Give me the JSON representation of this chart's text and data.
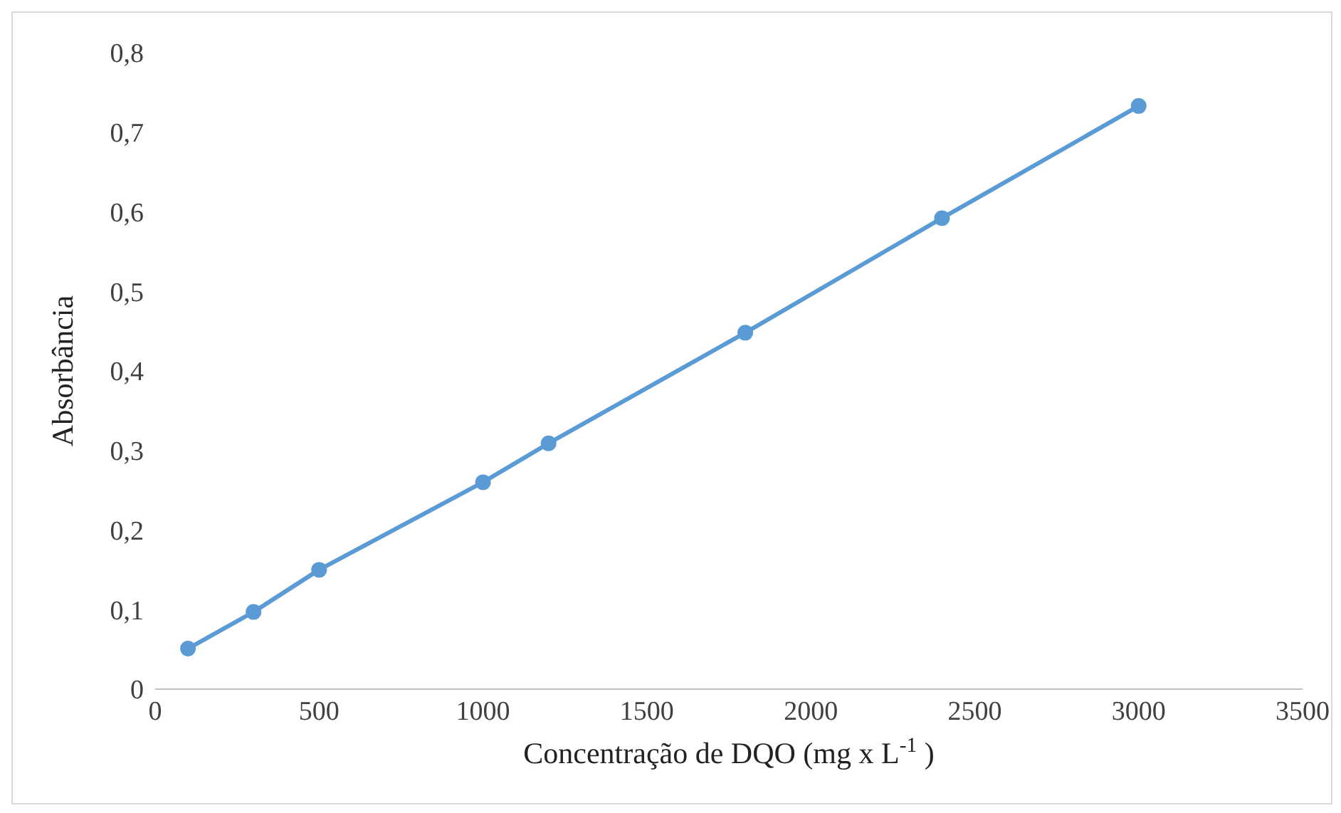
{
  "chart_data": {
    "type": "line",
    "xlabel": "Concentração de DQO (mg x L$^{-1}$ )",
    "ylabel": "Absorbância",
    "x": [
      100,
      300,
      500,
      1000,
      1200,
      1800,
      2400,
      3000
    ],
    "series": [
      {
        "color": "#5b9bd5",
        "values": [
          0.051,
          0.097,
          0.15,
          0.26,
          0.309,
          0.448,
          0.592,
          0.733
        ]
      }
    ],
    "xlim": [
      0,
      3500
    ],
    "xticks": [
      0,
      500,
      1000,
      1500,
      2000,
      2500,
      3000,
      3500
    ],
    "ylim": [
      0,
      0.8
    ],
    "yticks": [
      0,
      {
        "value": 0.1,
        "label": "0,1"
      },
      {
        "value": 0.2,
        "label": "0,2"
      },
      {
        "value": 0.3,
        "label": "0,3"
      },
      {
        "value": 0.4,
        "label": "0,4"
      },
      {
        "value": 0.5,
        "label": "0,5"
      },
      {
        "value": 0.6,
        "label": "0,6"
      },
      {
        "value": 0.7,
        "label": "0,7"
      },
      {
        "value": 0.8,
        "label": "0,8"
      }
    ],
    "grid": false,
    "legend": false,
    "marker": "circle",
    "line_style": "solid"
  }
}
